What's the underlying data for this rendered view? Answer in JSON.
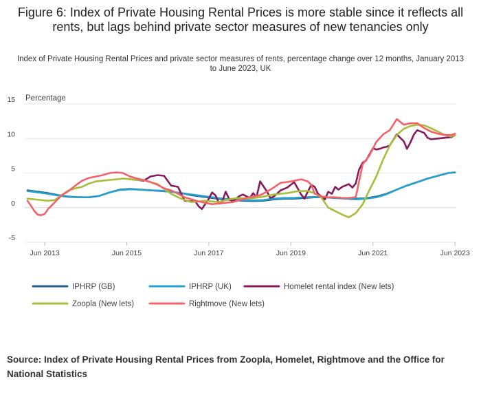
{
  "chart_data": {
    "type": "line",
    "title": "Figure 6: Index of Private Housing Rental Prices is more stable since it reflects all rents, but lags behind private sector measures of new tenancies only",
    "subtitle": "Index of Private Housing Rental Prices and private sector measures of rents, percentage change over 12 months, January 2013 to June 2023, UK",
    "ylabel": "Percentage",
    "xlabel": "",
    "ylim": [
      -5,
      15
    ],
    "yticks": [
      15,
      10,
      5,
      0,
      -5
    ],
    "x_range": [
      2013.0,
      2023.45
    ],
    "xticks": [
      {
        "label": "Jun 2013",
        "x": 2013.42
      },
      {
        "label": "Jun 2015",
        "x": 2015.42
      },
      {
        "label": "Jun 2017",
        "x": 2017.42
      },
      {
        "label": "Jun 2019",
        "x": 2019.42
      },
      {
        "label": "Jun 2021",
        "x": 2021.42
      },
      {
        "label": "Jun 2023",
        "x": 2023.42
      }
    ],
    "grid": true,
    "legend_position": "bottom",
    "series": [
      {
        "name": "IPHRP (GB)",
        "color": "#206095",
        "x": [
          2013.0,
          2013.25,
          2013.5,
          2013.75,
          2014.0,
          2014.25,
          2014.5,
          2014.75,
          2015.0,
          2015.25,
          2015.5,
          2015.75,
          2016.0,
          2016.25,
          2016.5,
          2016.75,
          2017.0,
          2017.25,
          2017.5,
          2017.75,
          2018.0,
          2018.25,
          2018.5,
          2018.75,
          2019.0,
          2019.25,
          2019.5,
          2019.75,
          2020.0,
          2020.25,
          2020.5,
          2020.75,
          2021.0,
          2021.25,
          2021.5,
          2021.75,
          2022.0,
          2022.25,
          2022.5,
          2022.75,
          2023.0,
          2023.25,
          2023.42
        ],
        "y": [
          2.5,
          2.3,
          2.1,
          1.8,
          1.6,
          1.5,
          1.5,
          1.7,
          2.2,
          2.6,
          2.7,
          2.6,
          2.5,
          2.4,
          2.3,
          2.1,
          1.8,
          1.6,
          1.4,
          1.2,
          1.1,
          1.0,
          0.95,
          1.0,
          1.2,
          1.3,
          1.3,
          1.4,
          1.5,
          1.5,
          1.4,
          1.35,
          1.3,
          1.35,
          1.6,
          2.0,
          2.6,
          3.2,
          3.7,
          4.2,
          4.6,
          5.0,
          5.1
        ]
      },
      {
        "name": "IPHRP (UK)",
        "color": "#27a0cc",
        "x": [
          2013.0,
          2013.25,
          2013.5,
          2013.75,
          2014.0,
          2014.25,
          2014.5,
          2014.75,
          2015.0,
          2015.25,
          2015.5,
          2015.75,
          2016.0,
          2016.25,
          2016.5,
          2016.75,
          2017.0,
          2017.25,
          2017.5,
          2017.75,
          2018.0,
          2018.25,
          2018.5,
          2018.75,
          2019.0,
          2019.25,
          2019.5,
          2019.75,
          2020.0,
          2020.25,
          2020.5,
          2020.75,
          2021.0,
          2021.25,
          2021.5,
          2021.75,
          2022.0,
          2022.25,
          2022.5,
          2022.75,
          2023.0,
          2023.25,
          2023.42
        ],
        "y": [
          2.4,
          2.2,
          2.0,
          1.75,
          1.55,
          1.5,
          1.5,
          1.7,
          2.2,
          2.55,
          2.65,
          2.6,
          2.5,
          2.45,
          2.3,
          2.1,
          1.9,
          1.7,
          1.5,
          1.3,
          1.2,
          1.1,
          1.05,
          1.1,
          1.3,
          1.4,
          1.4,
          1.5,
          1.55,
          1.5,
          1.4,
          1.3,
          1.2,
          1.3,
          1.5,
          1.95,
          2.6,
          3.2,
          3.7,
          4.2,
          4.6,
          5.0,
          5.1
        ]
      },
      {
        "name": "Homelet rental index (New lets)",
        "color": "#871a5b",
        "x": [
          2015.5,
          2015.83,
          2016.0,
          2016.17,
          2016.33,
          2016.5,
          2016.67,
          2016.83,
          2017.0,
          2017.08,
          2017.17,
          2017.25,
          2017.42,
          2017.5,
          2017.58,
          2017.67,
          2017.75,
          2017.83,
          2017.92,
          2018.0,
          2018.17,
          2018.25,
          2018.42,
          2018.5,
          2018.58,
          2018.67,
          2018.83,
          2018.92,
          2019.0,
          2019.17,
          2019.33,
          2019.5,
          2019.67,
          2019.75,
          2019.83,
          2019.92,
          2020.0,
          2020.08,
          2020.25,
          2020.33,
          2020.42,
          2020.5,
          2020.58,
          2020.67,
          2020.75,
          2020.83,
          2020.92,
          2021.0,
          2021.08,
          2021.17,
          2021.25,
          2021.42,
          2021.5,
          2021.58,
          2021.67,
          2021.75,
          2021.83,
          2022.0,
          2022.17,
          2022.25,
          2022.33,
          2022.42,
          2022.5,
          2022.67,
          2022.75,
          2022.83,
          2023.0,
          2023.17,
          2023.33,
          2023.42
        ],
        "y": [
          4.1,
          3.9,
          4.5,
          4.7,
          4.6,
          3.2,
          3.0,
          1.0,
          0.9,
          1.0,
          0.2,
          -0.2,
          1.3,
          2.2,
          1.8,
          0.6,
          0.9,
          2.3,
          1.2,
          0.9,
          1.7,
          1.9,
          1.4,
          2.1,
          1.5,
          3.8,
          2.4,
          1.4,
          1.6,
          2.5,
          2.9,
          3.7,
          1.9,
          1.3,
          2.3,
          3.3,
          3.0,
          2.0,
          1.2,
          2.3,
          2.0,
          3.0,
          2.6,
          3.0,
          3.2,
          3.4,
          2.9,
          3.5,
          5.5,
          6.5,
          6.8,
          8.6,
          8.4,
          8.5,
          8.7,
          8.8,
          9.0,
          10.6,
          9.6,
          8.5,
          9.4,
          10.6,
          11.2,
          10.8,
          10.1,
          9.9,
          10.0,
          10.1,
          10.2,
          10.5
        ]
      },
      {
        "name": "Zoopla (New lets)",
        "color": "#a8bd3a",
        "x": [
          2013.0,
          2013.17,
          2013.33,
          2013.5,
          2013.67,
          2013.83,
          2014.0,
          2014.17,
          2014.33,
          2014.5,
          2014.67,
          2014.83,
          2015.0,
          2015.17,
          2015.33,
          2015.5,
          2015.67,
          2015.83,
          2016.0,
          2016.17,
          2016.33,
          2016.5,
          2016.67,
          2016.83,
          2017.0,
          2017.17,
          2017.33,
          2017.5,
          2017.67,
          2017.83,
          2018.0,
          2018.17,
          2018.33,
          2018.5,
          2018.67,
          2018.83,
          2019.0,
          2019.17,
          2019.33,
          2019.5,
          2019.67,
          2019.83,
          2020.0,
          2020.17,
          2020.33,
          2020.5,
          2020.67,
          2020.83,
          2021.0,
          2021.17,
          2021.33,
          2021.5,
          2021.67,
          2021.83,
          2022.0,
          2022.17,
          2022.33,
          2022.5,
          2022.67,
          2022.83,
          2023.0,
          2023.17,
          2023.33,
          2023.42
        ],
        "y": [
          1.3,
          1.2,
          1.1,
          1.0,
          1.1,
          1.8,
          2.5,
          2.8,
          3.0,
          3.5,
          3.8,
          3.9,
          4.0,
          4.1,
          4.2,
          4.1,
          4.0,
          4.0,
          3.7,
          3.4,
          2.7,
          2.0,
          1.5,
          1.1,
          0.8,
          0.9,
          1.0,
          0.9,
          0.8,
          1.1,
          1.3,
          1.4,
          1.3,
          1.4,
          1.5,
          1.7,
          1.9,
          2.0,
          2.1,
          2.3,
          2.4,
          2.4,
          2.1,
          1.4,
          0.0,
          -0.5,
          -1.0,
          -1.4,
          -0.8,
          0.5,
          2.5,
          4.5,
          7.0,
          9.0,
          10.5,
          11.4,
          11.8,
          12.0,
          11.9,
          11.5,
          11.0,
          10.5,
          10.3,
          10.5
        ]
      },
      {
        "name": "Rightmove (New lets)",
        "color": "#f66068",
        "x": [
          2013.0,
          2013.08,
          2013.17,
          2013.25,
          2013.33,
          2013.42,
          2013.5,
          2013.67,
          2013.83,
          2014.0,
          2014.17,
          2014.33,
          2014.5,
          2014.67,
          2014.83,
          2015.0,
          2015.17,
          2015.33,
          2015.5,
          2015.67,
          2015.83,
          2016.0,
          2016.17,
          2016.33,
          2016.5,
          2016.67,
          2016.83,
          2017.0,
          2017.17,
          2017.33,
          2017.5,
          2017.67,
          2017.83,
          2018.0,
          2018.17,
          2018.33,
          2018.5,
          2018.67,
          2018.83,
          2019.0,
          2019.17,
          2019.33,
          2019.5,
          2019.67,
          2019.83,
          2019.92,
          2020.0,
          2020.17,
          2020.33,
          2020.5,
          2020.67,
          2020.83,
          2021.0,
          2021.17,
          2021.33,
          2021.5,
          2021.67,
          2021.83,
          2022.0,
          2022.17,
          2022.33,
          2022.5,
          2022.67,
          2022.83,
          2023.0,
          2023.17,
          2023.33,
          2023.42
        ],
        "y": [
          1.0,
          0.3,
          -0.5,
          -1.0,
          -1.1,
          -0.9,
          -0.2,
          0.8,
          1.8,
          2.4,
          3.2,
          3.9,
          4.3,
          4.5,
          4.7,
          5.0,
          5.1,
          5.0,
          4.5,
          4.2,
          4.0,
          3.7,
          3.3,
          2.8,
          2.5,
          2.0,
          1.5,
          1.2,
          0.9,
          0.7,
          0.5,
          0.6,
          0.7,
          0.8,
          1.1,
          1.4,
          1.6,
          1.8,
          2.3,
          2.9,
          3.6,
          3.7,
          3.9,
          4.1,
          3.8,
          3.3,
          2.0,
          1.6,
          1.5,
          1.5,
          1.4,
          1.4,
          1.5,
          6.3,
          7.5,
          9.5,
          10.6,
          11.2,
          12.8,
          12.0,
          12.2,
          12.2,
          11.5,
          11.0,
          10.7,
          10.5,
          10.5,
          10.7
        ]
      }
    ]
  },
  "source": "Source: Index of Private Housing Rental Prices from Zoopla, Homelet, Rightmove and the Office for National Statistics"
}
